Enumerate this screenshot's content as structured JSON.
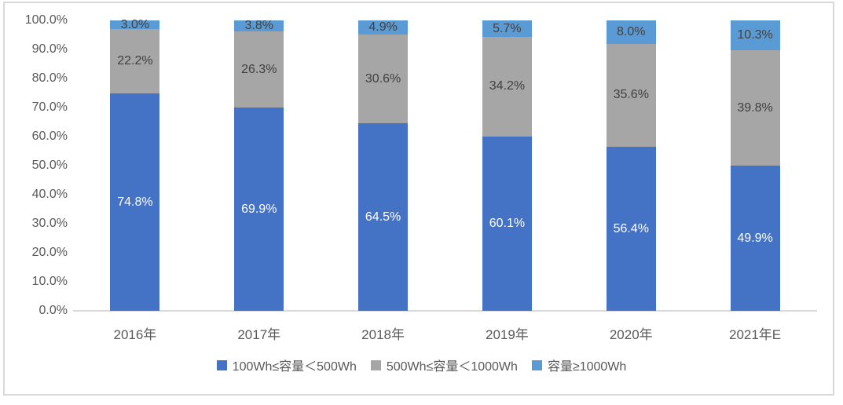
{
  "chart_data": {
    "type": "bar",
    "variant": "stacked-100-percent-column",
    "title": "",
    "xlabel": "",
    "ylabel": "",
    "categories": [
      "2016年",
      "2017年",
      "2018年",
      "2019年",
      "2020年",
      "2021年E"
    ],
    "series": [
      {
        "name": "100Wh≤容量＜500Wh",
        "color": "#4472c4",
        "label_color": "#ffffff",
        "values": [
          74.8,
          69.9,
          64.5,
          60.1,
          56.4,
          49.9
        ]
      },
      {
        "name": "500Wh≤容量＜1000Wh",
        "color": "#a6a6a6",
        "label_color": "#404040",
        "values": [
          22.2,
          26.3,
          30.6,
          34.2,
          35.6,
          39.8
        ]
      },
      {
        "name": "容量≥1000Wh",
        "color": "#5b9bd5",
        "label_color": "#404040",
        "values": [
          3.0,
          3.8,
          4.9,
          5.7,
          8.0,
          10.3
        ]
      }
    ],
    "data_label_suffix": "%",
    "y_axis": {
      "min": 0,
      "max": 100,
      "step": 10,
      "tick_labels": [
        "0.0%",
        "10.0%",
        "20.0%",
        "30.0%",
        "40.0%",
        "50.0%",
        "60.0%",
        "70.0%",
        "80.0%",
        "90.0%",
        "100.0%"
      ]
    },
    "gridlines": false,
    "legend_position": "bottom"
  },
  "style": {
    "axis_line_color": "#d9d9d9",
    "frame_border_color": "#d9d9d9",
    "axis_text_color": "#595959",
    "background_color": "#ffffff"
  }
}
